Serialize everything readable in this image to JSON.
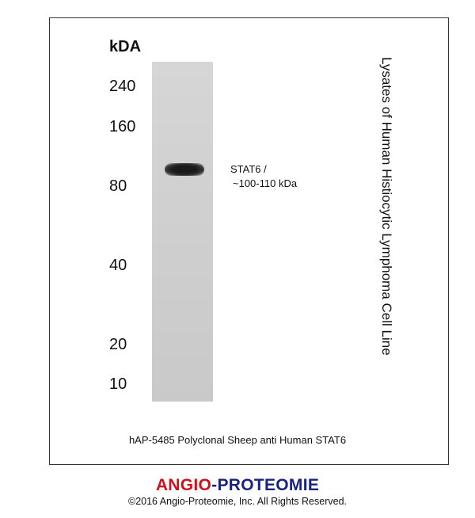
{
  "blot": {
    "unit_label": "kDA",
    "markers": [
      "240",
      "160",
      "80",
      "40",
      "20",
      "10"
    ],
    "band_label_line1": "STAT6  /",
    "band_label_line2": "~100-110 kDa",
    "sample_label": "Lysates of  Human Histiocytic Lymphoma Cell Line",
    "caption": "hAP-5485 Polyclonal Sheep anti Human STAT6"
  },
  "footer": {
    "logo_part1": "ANGIO",
    "logo_sep": "-",
    "logo_part2": "PROTEOMIE",
    "logo_color1": "#d0111b",
    "logo_color2": "#1a237e",
    "copyright": "©2016 Angio-Proteomie, Inc.  All Rights Reserved."
  }
}
